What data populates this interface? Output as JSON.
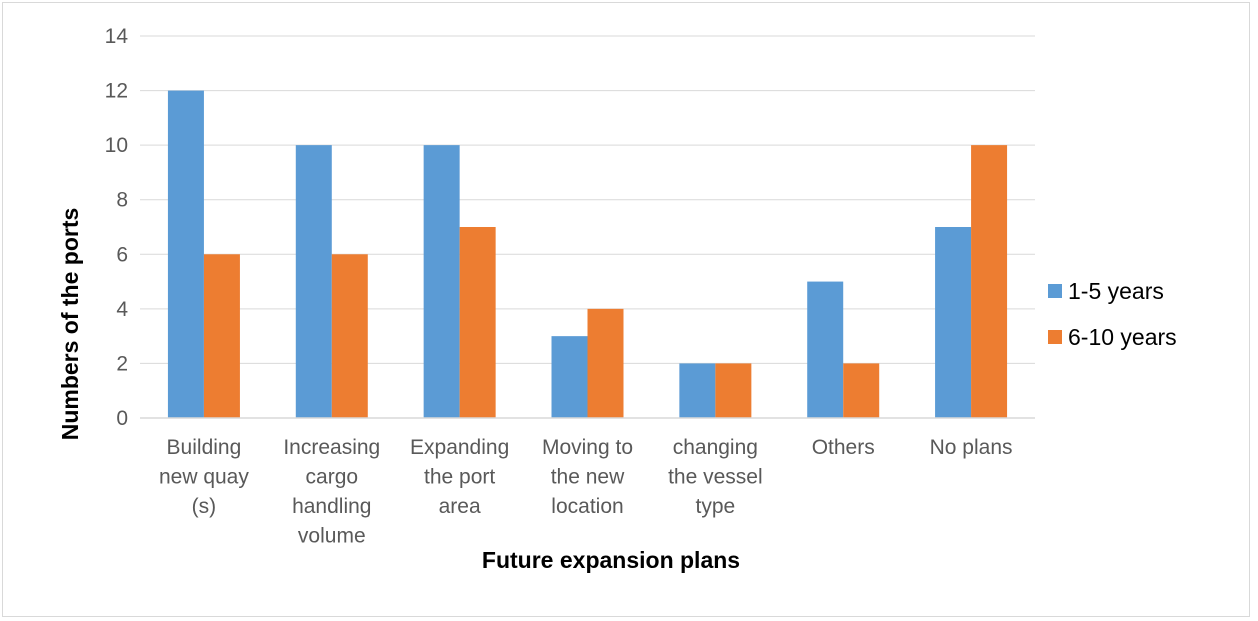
{
  "chart_data": {
    "type": "bar",
    "title": "",
    "xlabel": "Future expansion plans",
    "ylabel": "Numbers of the ports",
    "categories": [
      [
        "Building",
        "new quay",
        "(s)"
      ],
      [
        "Increasing",
        "cargo",
        "handling",
        "volume"
      ],
      [
        "Expanding",
        "the port",
        "area"
      ],
      [
        "Moving to",
        "the new",
        "location"
      ],
      [
        "changing",
        "the vessel",
        "type"
      ],
      [
        "Others"
      ],
      [
        "No plans"
      ]
    ],
    "series": [
      {
        "name": "1-5 years",
        "color": "#5b9bd5",
        "values": [
          12,
          10,
          10,
          3,
          2,
          5,
          7
        ]
      },
      {
        "name": "6-10 years",
        "color": "#ed7d31",
        "values": [
          6,
          6,
          7,
          4,
          2,
          2,
          10
        ]
      }
    ],
    "ylim": [
      0,
      14
    ],
    "yticks": [
      0,
      2,
      4,
      6,
      8,
      10,
      12,
      14
    ],
    "grid": true,
    "legend_position": "right"
  }
}
